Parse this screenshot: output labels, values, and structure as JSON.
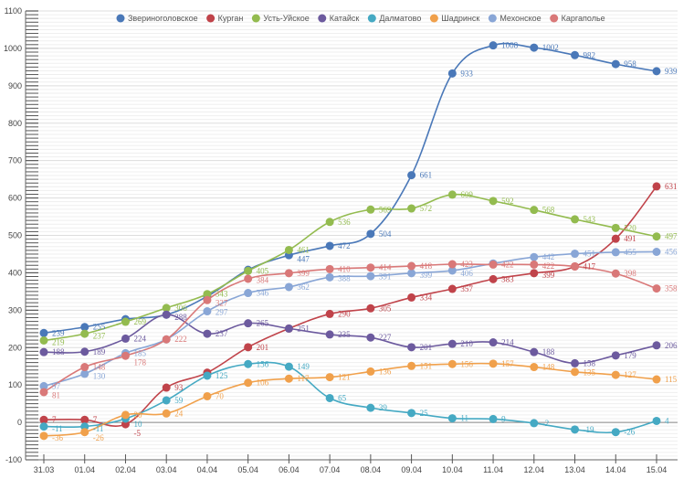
{
  "chart_data": {
    "type": "line",
    "title": "",
    "xlabel": "",
    "ylabel": "",
    "ylim": [
      -100,
      1100
    ],
    "yticks": [
      -100,
      0,
      100,
      200,
      300,
      400,
      500,
      600,
      700,
      800,
      900,
      1000,
      1100
    ],
    "grid": true,
    "legend_position": "top-center",
    "categories": [
      "31.03",
      "01.04",
      "02.04",
      "03.04",
      "04.04",
      "05.04",
      "06.04",
      "07.04",
      "08.04",
      "09.04",
      "10.04",
      "11.04",
      "12.04",
      "13.04",
      "14.04",
      "15.04"
    ],
    "series": [
      {
        "name": "Звериноголовское",
        "color": "#4a78b8",
        "values": [
          239,
          255,
          276,
          288,
          337,
          408,
          447,
          472,
          504,
          661,
          933,
          1008,
          1002,
          982,
          958,
          939
        ],
        "labels": [
          "239",
          "255",
          "",
          "",
          "",
          "",
          "447",
          "472",
          "504",
          "661",
          "933",
          "1008",
          "1002",
          "982",
          "958",
          "939"
        ]
      },
      {
        "name": "Курган",
        "color": "#c0434a",
        "values": [
          7,
          7,
          -5,
          93,
          133,
          201,
          251,
          290,
          305,
          334,
          357,
          383,
          399,
          417,
          491,
          631
        ],
        "labels": [
          "7",
          "7",
          "-5",
          "93",
          "",
          "201",
          "",
          "290",
          "305",
          "334",
          "357",
          "383",
          "399",
          "417",
          "491",
          "631"
        ]
      },
      {
        "name": "Усть-Уйское",
        "color": "#93bb4f",
        "values": [
          219,
          237,
          269,
          306,
          343,
          405,
          461,
          536,
          569,
          572,
          609,
          592,
          568,
          543,
          520,
          497
        ],
        "labels": [
          "219",
          "237",
          "269",
          "306",
          "343",
          "405",
          "461",
          "536",
          "569",
          "572",
          "609",
          "592",
          "568",
          "543",
          "520",
          "497"
        ]
      },
      {
        "name": "Катайск",
        "color": "#6c5a9e",
        "values": [
          188,
          189,
          224,
          288,
          237,
          265,
          251,
          235,
          227,
          201,
          210,
          214,
          188,
          158,
          179,
          206
        ],
        "labels": [
          "188",
          "189",
          "224",
          "288",
          "237",
          "265",
          "251",
          "235",
          "227",
          "201",
          "210",
          "214",
          "188",
          "158",
          "179",
          "206"
        ]
      },
      {
        "name": "Далматово",
        "color": "#45a9c3",
        "values": [
          -11,
          -11,
          10,
          59,
          125,
          156,
          149,
          65,
          39,
          25,
          11,
          9,
          -2,
          -19,
          -26,
          4
        ],
        "labels": [
          "-11",
          "-11",
          "10",
          "59",
          "125",
          "156",
          "149",
          "65",
          "39",
          "25",
          "11",
          "9",
          "-2",
          "-19",
          "-26",
          "4"
        ]
      },
      {
        "name": "Шадринск",
        "color": "#f0a04b",
        "values": [
          -36,
          -26,
          20,
          24,
          70,
          106,
          117,
          121,
          136,
          151,
          156,
          157,
          148,
          135,
          127,
          115
        ],
        "labels": [
          "-36",
          "-26",
          "20",
          "24",
          "70",
          "106",
          "117",
          "121",
          "136",
          "151",
          "156",
          "157",
          "148",
          "135",
          "127",
          "115"
        ]
      },
      {
        "name": "Мехонское",
        "color": "#89a6d6",
        "values": [
          97,
          130,
          185,
          222,
          297,
          346,
          362,
          388,
          391,
          399,
          406,
          425,
          442,
          451,
          455,
          456
        ],
        "labels": [
          "97",
          "130",
          "185",
          "",
          "297",
          "346",
          "362",
          "388",
          "391",
          "399",
          "406",
          "",
          "442",
          "451",
          "455",
          "456"
        ]
      },
      {
        "name": "Каргаполье",
        "color": "#d97878",
        "values": [
          81,
          148,
          178,
          222,
          327,
          384,
          399,
          410,
          414,
          418,
          423,
          422,
          422,
          417,
          398,
          358
        ],
        "labels": [
          "81",
          "148",
          "178",
          "222",
          "327",
          "384",
          "399",
          "410",
          "414",
          "418",
          "423",
          "422",
          "422",
          "",
          "398",
          "358"
        ]
      }
    ]
  }
}
